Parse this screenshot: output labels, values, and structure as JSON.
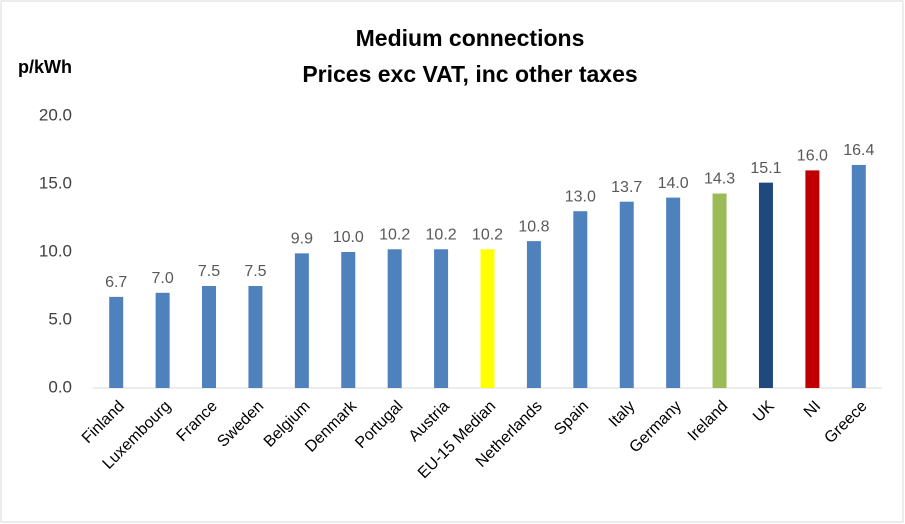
{
  "chart_data": {
    "type": "bar",
    "title": "Medium connections",
    "subtitle": "Prices exc VAT, inc other taxes",
    "y_label": "p/kWh",
    "categories": [
      "Finland",
      "Luxembourg",
      "France",
      "Sweden",
      "Belgium",
      "Denmark",
      "Portugal",
      "Austria",
      "EU-15 Median",
      "Netherlands",
      "Spain",
      "Italy",
      "Germany",
      "Ireland",
      "UK",
      "NI",
      "Greece"
    ],
    "values": [
      6.7,
      7.0,
      7.5,
      7.5,
      9.9,
      10.0,
      10.2,
      10.2,
      10.2,
      10.8,
      13.0,
      13.7,
      14.0,
      14.3,
      15.1,
      16.0,
      16.4
    ],
    "value_labels": [
      "6.7",
      "7.0",
      "7.5",
      "7.5",
      "9.9",
      "10.0",
      "10.2",
      "10.2",
      "10.2",
      "10.8",
      "13.0",
      "13.7",
      "14.0",
      "14.3",
      "15.1",
      "16.0",
      "16.4"
    ],
    "colors": [
      "#4f81bd",
      "#4f81bd",
      "#4f81bd",
      "#4f81bd",
      "#4f81bd",
      "#4f81bd",
      "#4f81bd",
      "#4f81bd",
      "#ffff00",
      "#4f81bd",
      "#4f81bd",
      "#4f81bd",
      "#4f81bd",
      "#9bbb59",
      "#1f497d",
      "#c00000",
      "#4f81bd"
    ],
    "ylim": [
      0,
      20
    ],
    "yticks": [
      {
        "value": 0,
        "label": "0.0"
      },
      {
        "value": 5,
        "label": "5.0"
      },
      {
        "value": 10,
        "label": "10.0"
      },
      {
        "value": 15,
        "label": "15.0"
      },
      {
        "value": 20,
        "label": "20.0"
      }
    ],
    "grid": false
  }
}
